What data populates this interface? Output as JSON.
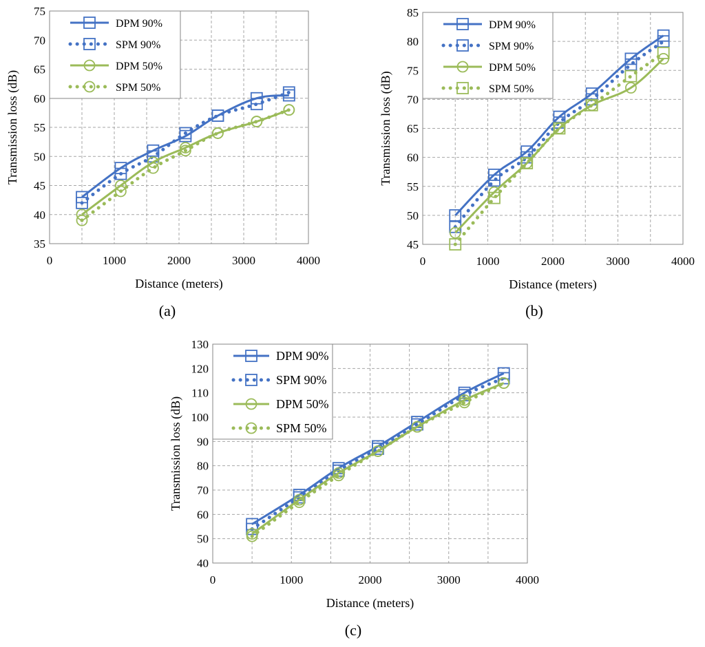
{
  "figure": {
    "captions": [
      "(a)",
      "(b)",
      "(c)"
    ]
  },
  "colors": {
    "blue": "#4472C4",
    "green": "#9BBB59",
    "grid": "#a6a6a6",
    "axis": "#868686"
  },
  "chart_data": [
    {
      "id": "a",
      "type": "line",
      "caption_letter": "a",
      "title": "",
      "xlabel": "Distance (meters)",
      "ylabel": "Transmission loss (dB)",
      "xlim": [
        0,
        4000
      ],
      "ylim": [
        35,
        75
      ],
      "xticks": [
        0,
        1000,
        2000,
        3000,
        4000
      ],
      "yticks": [
        35,
        40,
        45,
        50,
        55,
        60,
        65,
        70,
        75
      ],
      "grid": true,
      "legend_position": "top-left",
      "x": [
        500,
        1100,
        1600,
        2100,
        2600,
        3200,
        3700
      ],
      "series": [
        {
          "name": "DPM 90%",
          "style": "solid",
          "marker": "square",
          "color": "blue",
          "values": [
            43,
            48,
            51,
            53.5,
            57,
            60,
            60.5
          ]
        },
        {
          "name": "SPM 90%",
          "style": "dotted",
          "marker": "square",
          "color": "blue",
          "values": [
            42,
            47,
            50,
            54,
            57,
            59,
            61
          ]
        },
        {
          "name": "DPM 50%",
          "style": "solid",
          "marker": "circle",
          "color": "green",
          "values": [
            40,
            45,
            49,
            51.5,
            54,
            56,
            58
          ]
        },
        {
          "name": "SPM 50%",
          "style": "dotted",
          "marker": "circle",
          "color": "green",
          "values": [
            39,
            44,
            48,
            51,
            54,
            56,
            58
          ]
        }
      ]
    },
    {
      "id": "b",
      "type": "line",
      "caption_letter": "b",
      "title": "",
      "xlabel": "Distance (meters)",
      "ylabel": "Transmission loss (dB)",
      "xlim": [
        0,
        4000
      ],
      "ylim": [
        45,
        85
      ],
      "xticks": [
        0,
        1000,
        2000,
        3000,
        4000
      ],
      "yticks": [
        45,
        50,
        55,
        60,
        65,
        70,
        75,
        80,
        85
      ],
      "grid": true,
      "legend_position": "top-left",
      "x": [
        500,
        1100,
        1600,
        2100,
        2600,
        3200,
        3700
      ],
      "series": [
        {
          "name": "DPM 90%",
          "style": "solid",
          "marker": "square",
          "color": "blue",
          "values": [
            50,
            57,
            61,
            67,
            71,
            77,
            81
          ]
        },
        {
          "name": "SPM 90%",
          "style": "dotted",
          "marker": "square",
          "color": "blue",
          "values": [
            48,
            56,
            60,
            66,
            70,
            76,
            80
          ]
        },
        {
          "name": "DPM 50%",
          "style": "solid",
          "marker": "circle",
          "color": "green",
          "values": [
            47,
            54,
            59,
            65,
            69,
            72,
            77
          ]
        },
        {
          "name": "SPM 50%",
          "style": "dotted",
          "marker": "square",
          "color": "green",
          "values": [
            45,
            53,
            59,
            65,
            69,
            74,
            78
          ]
        }
      ]
    },
    {
      "id": "c",
      "type": "line",
      "caption_letter": "c",
      "title": "",
      "xlabel": "Distance (meters)",
      "ylabel": "Transmission loss (dB)",
      "xlim": [
        0,
        4000
      ],
      "ylim": [
        40,
        130
      ],
      "xticks": [
        0,
        1000,
        2000,
        3000,
        4000
      ],
      "yticks": [
        40,
        50,
        60,
        70,
        80,
        90,
        100,
        110,
        120,
        130
      ],
      "grid": true,
      "legend_position": "top-left",
      "x": [
        500,
        1100,
        1600,
        2100,
        2600,
        3200,
        3700
      ],
      "series": [
        {
          "name": "DPM 90%",
          "style": "solid",
          "marker": "square",
          "color": "blue",
          "values": [
            56,
            68,
            79,
            88,
            98,
            110,
            118
          ]
        },
        {
          "name": "SPM 90%",
          "style": "dotted",
          "marker": "square",
          "color": "blue",
          "values": [
            54,
            67,
            78,
            87,
            97,
            109,
            116
          ]
        },
        {
          "name": "DPM 50%",
          "style": "solid",
          "marker": "circle",
          "color": "green",
          "values": [
            52,
            66,
            77,
            86,
            96,
            107,
            114
          ]
        },
        {
          "name": "SPM 50%",
          "style": "dotted",
          "marker": "circle",
          "color": "green",
          "values": [
            51,
            65,
            76,
            86,
            96,
            106,
            114
          ]
        }
      ]
    }
  ]
}
